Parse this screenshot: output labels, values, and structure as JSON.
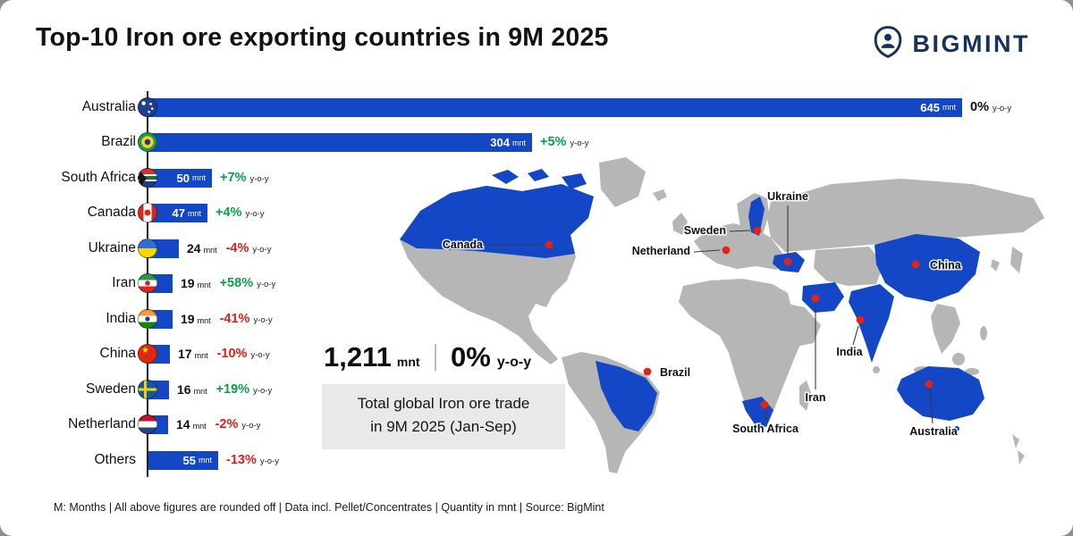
{
  "header": {
    "title": "Top-10 Iron ore exporting countries in 9M 2025",
    "brand": "BIGMINT"
  },
  "chart_data": {
    "type": "bar",
    "orientation": "horizontal",
    "title": "Top-10 Iron ore exporting countries in 9M 2025",
    "unit": "mnt",
    "yoy_suffix": "y-o-y",
    "categories": [
      "Australia",
      "Brazil",
      "South Africa",
      "Canada",
      "Ukraine",
      "Iran",
      "India",
      "China",
      "Sweden",
      "Netherland",
      "Others"
    ],
    "values": [
      645,
      304,
      50,
      47,
      24,
      19,
      19,
      17,
      16,
      14,
      55
    ],
    "yoy_change": [
      "0%",
      "+5%",
      "+7%",
      "+4%",
      "-4%",
      "+58%",
      "-41%",
      "-10%",
      "+19%",
      "-2%",
      "-13%"
    ],
    "flags": [
      "australia",
      "brazil",
      "south-africa",
      "canada",
      "ukraine",
      "iran",
      "india",
      "china",
      "sweden",
      "netherland",
      null
    ],
    "xlim": [
      0,
      645
    ],
    "bar_color": "#1347c5",
    "positive_color": "#0aa147",
    "negative_color": "#e11d1d",
    "zero_color": "#111111"
  },
  "map": {
    "land_color": "#b6b6b6",
    "highlight_color": "#1347c5",
    "marker_color": "#e02419",
    "markers": [
      {
        "label": "Canada"
      },
      {
        "label": "Sweden"
      },
      {
        "label": "Ukraine"
      },
      {
        "label": "Netherland"
      },
      {
        "label": "China"
      },
      {
        "label": "Brazil"
      },
      {
        "label": "India"
      },
      {
        "label": "Iran"
      },
      {
        "label": "South Africa"
      },
      {
        "label": "Australia"
      }
    ]
  },
  "summary": {
    "total_value": "1,211",
    "total_unit": "mnt",
    "yoy_value": "0%",
    "yoy_suffix": "y-o-y",
    "caption_line1": "Total global Iron ore trade",
    "caption_line2": "in 9M 2025 (Jan-Sep)"
  },
  "footer": {
    "note": "M: Months | All above figures are rounded off | Data incl. Pellet/Concentrates | Quantity in mnt | Source: BigMint"
  }
}
